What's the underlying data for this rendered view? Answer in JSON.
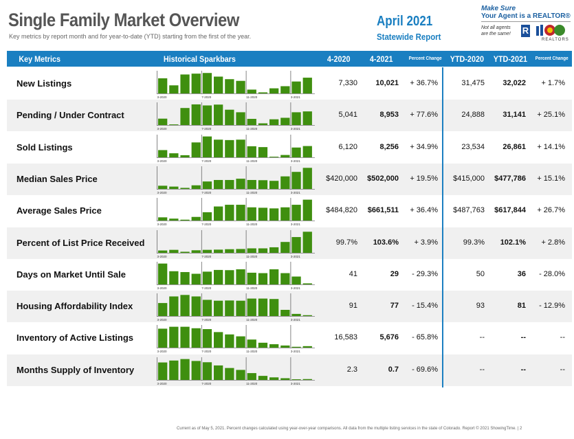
{
  "header": {
    "title": "Single Family Market Overview",
    "subtitle": "Key metrics by report month and for year-to-date (YTD) starting from the first of the year.",
    "month": "April 2021",
    "report": "Statewide Report"
  },
  "logo": {
    "line1": "Make Sure",
    "line2": "Your Agent is a REALTOR®",
    "line3": "Not all agents are the same!",
    "r": "R",
    "realtors": "REALTORS"
  },
  "columns": {
    "metric": "Key Metrics",
    "spark": "Historical Sparkbars",
    "m1": "4-2020",
    "m2": "4-2021",
    "pct": "Percent Change",
    "y1": "YTD-2020",
    "y2": "YTD-2021",
    "ypct": "Percent Change"
  },
  "spark_labels": [
    "3-2020",
    "7-2020",
    "11-2020",
    "3-2021"
  ],
  "bar_color": "#3f8f0f",
  "accent": "#1a7fc1",
  "rows": [
    {
      "label": "New Listings",
      "m1": "7,330",
      "m2": "10,021",
      "pct": "+ 36.7%",
      "y1": "31,475",
      "y2": "32,022",
      "ypct": "+ 1.7%",
      "bars": [
        0.71,
        0.38,
        0.89,
        0.93,
        0.96,
        0.79,
        0.67,
        0.59,
        0.18,
        0.05,
        0.24,
        0.34,
        0.56,
        0.74
      ]
    },
    {
      "label": "Pending / Under Contract",
      "m1": "5,041",
      "m2": "8,953",
      "pct": "+ 77.6%",
      "y1": "24,888",
      "y2": "31,141",
      "ypct": "+ 25.1%",
      "bars": [
        0.3,
        0.03,
        0.8,
        0.97,
        0.92,
        0.96,
        0.72,
        0.6,
        0.29,
        0.08,
        0.27,
        0.34,
        0.6,
        0.64
      ]
    },
    {
      "label": "Sold Listings",
      "m1": "6,120",
      "m2": "8,256",
      "pct": "+ 34.9%",
      "y1": "23,534",
      "y2": "26,861",
      "ypct": "+ 14.1%",
      "bars": [
        0.34,
        0.19,
        0.1,
        0.7,
        0.98,
        0.83,
        0.81,
        0.83,
        0.52,
        0.48,
        0.03,
        0.11,
        0.46,
        0.53
      ]
    },
    {
      "label": "Median Sales Price",
      "m1": "$420,000",
      "m2": "$502,000",
      "pct": "+ 19.5%",
      "y1": "$415,000",
      "y2": "$477,786",
      "ypct": "+ 15.1%",
      "bars": [
        0.15,
        0.11,
        0.05,
        0.17,
        0.35,
        0.42,
        0.42,
        0.48,
        0.42,
        0.41,
        0.38,
        0.59,
        0.8,
        0.99
      ]
    },
    {
      "label": "Average Sales Price",
      "m1": "$484,820",
      "m2": "$661,511",
      "pct": "+ 36.4%",
      "y1": "$487,763",
      "y2": "$617,844",
      "ypct": "+ 26.7%",
      "bars": [
        0.15,
        0.09,
        0.04,
        0.17,
        0.39,
        0.66,
        0.74,
        0.74,
        0.62,
        0.6,
        0.57,
        0.62,
        0.74,
        0.98
      ]
    },
    {
      "label": "Percent of List Price Received",
      "m1": "99.7%",
      "m2": "103.6%",
      "pct": "+ 3.9%",
      "y1": "99.3%",
      "y2": "102.1%",
      "ypct": "+ 2.8%",
      "bars": [
        0.11,
        0.14,
        0.05,
        0.12,
        0.14,
        0.15,
        0.17,
        0.18,
        0.21,
        0.21,
        0.26,
        0.51,
        0.74,
        0.99
      ]
    },
    {
      "label": "Days on Market Until Sale",
      "m1": "41",
      "m2": "29",
      "pct": "- 29.3%",
      "y1": "50",
      "y2": "36",
      "ypct": "- 28.0%",
      "bars": [
        0.98,
        0.62,
        0.58,
        0.5,
        0.6,
        0.68,
        0.67,
        0.71,
        0.55,
        0.53,
        0.71,
        0.53,
        0.37,
        0.05
      ]
    },
    {
      "label": "Housing Affordability Index",
      "m1": "91",
      "m2": "77",
      "pct": "- 15.4%",
      "y1": "93",
      "y2": "81",
      "ypct": "- 12.9%",
      "bars": [
        0.61,
        0.92,
        0.99,
        0.92,
        0.76,
        0.72,
        0.73,
        0.72,
        0.82,
        0.82,
        0.8,
        0.29,
        0.1,
        0.04
      ]
    },
    {
      "label": "Inventory of Active Listings",
      "m1": "16,583",
      "m2": "5,676",
      "pct": "- 65.8%",
      "y1": "--",
      "y2": "--",
      "ypct": "--",
      "bars": [
        0.89,
        0.98,
        0.98,
        0.91,
        0.87,
        0.73,
        0.62,
        0.53,
        0.38,
        0.23,
        0.16,
        0.1,
        0.04,
        0.07
      ]
    },
    {
      "label": "Months Supply of Inventory",
      "m1": "2.3",
      "m2": "0.7",
      "pct": "- 69.6%",
      "y1": "--",
      "y2": "--",
      "ypct": "--",
      "bars": [
        0.82,
        0.91,
        0.98,
        0.89,
        0.83,
        0.68,
        0.56,
        0.47,
        0.32,
        0.19,
        0.12,
        0.08,
        0.03,
        0.04
      ]
    }
  ],
  "footer": "Current as of May 5, 2021. Percent changes calculated using year-over-year comparisons. All data from the multiple listing services in the state of Colorado. Report © 2021 ShowingTime.  |  2"
}
